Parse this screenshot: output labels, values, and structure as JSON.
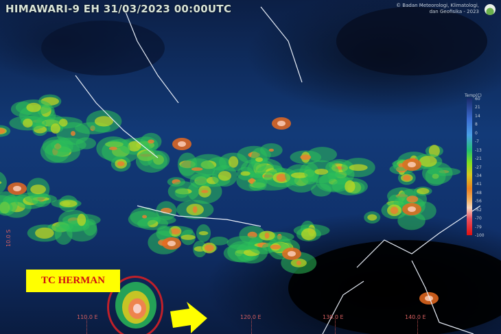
{
  "header": {
    "title": "HIMAWARI-9 EH  31/03/2023  00:00UTC",
    "credit_line1": "© Badan Meteorologi, Klimatologi,",
    "credit_line2": "dan Geofisika - 2023"
  },
  "colorbar": {
    "label": "Temp(C)",
    "ticks": [
      "60",
      "21",
      "14",
      "8",
      "0",
      "-7",
      "-13",
      "-21",
      "-27",
      "-34",
      "-41",
      "-48",
      "-56",
      "-62",
      "-70",
      "-79",
      "-100"
    ],
    "colors": [
      "#1a2a6a",
      "#3a6ad0",
      "#4aa0e8",
      "#22c070",
      "#7ee020",
      "#d8c820",
      "#e88020",
      "#f0b060",
      "#f8d8c0",
      "#e85060",
      "#e01010"
    ]
  },
  "axes": {
    "longitudes": [
      "110.0 E",
      "120.0 E",
      "130.0 E",
      "140.0 E"
    ],
    "latitude": "10.0 S"
  },
  "annotation": {
    "label": "TC HERMAN",
    "circle_color": "#c0202a",
    "box_color": "#ffff00",
    "arrow_color": "#ffff00",
    "arrow_direction": "east"
  }
}
